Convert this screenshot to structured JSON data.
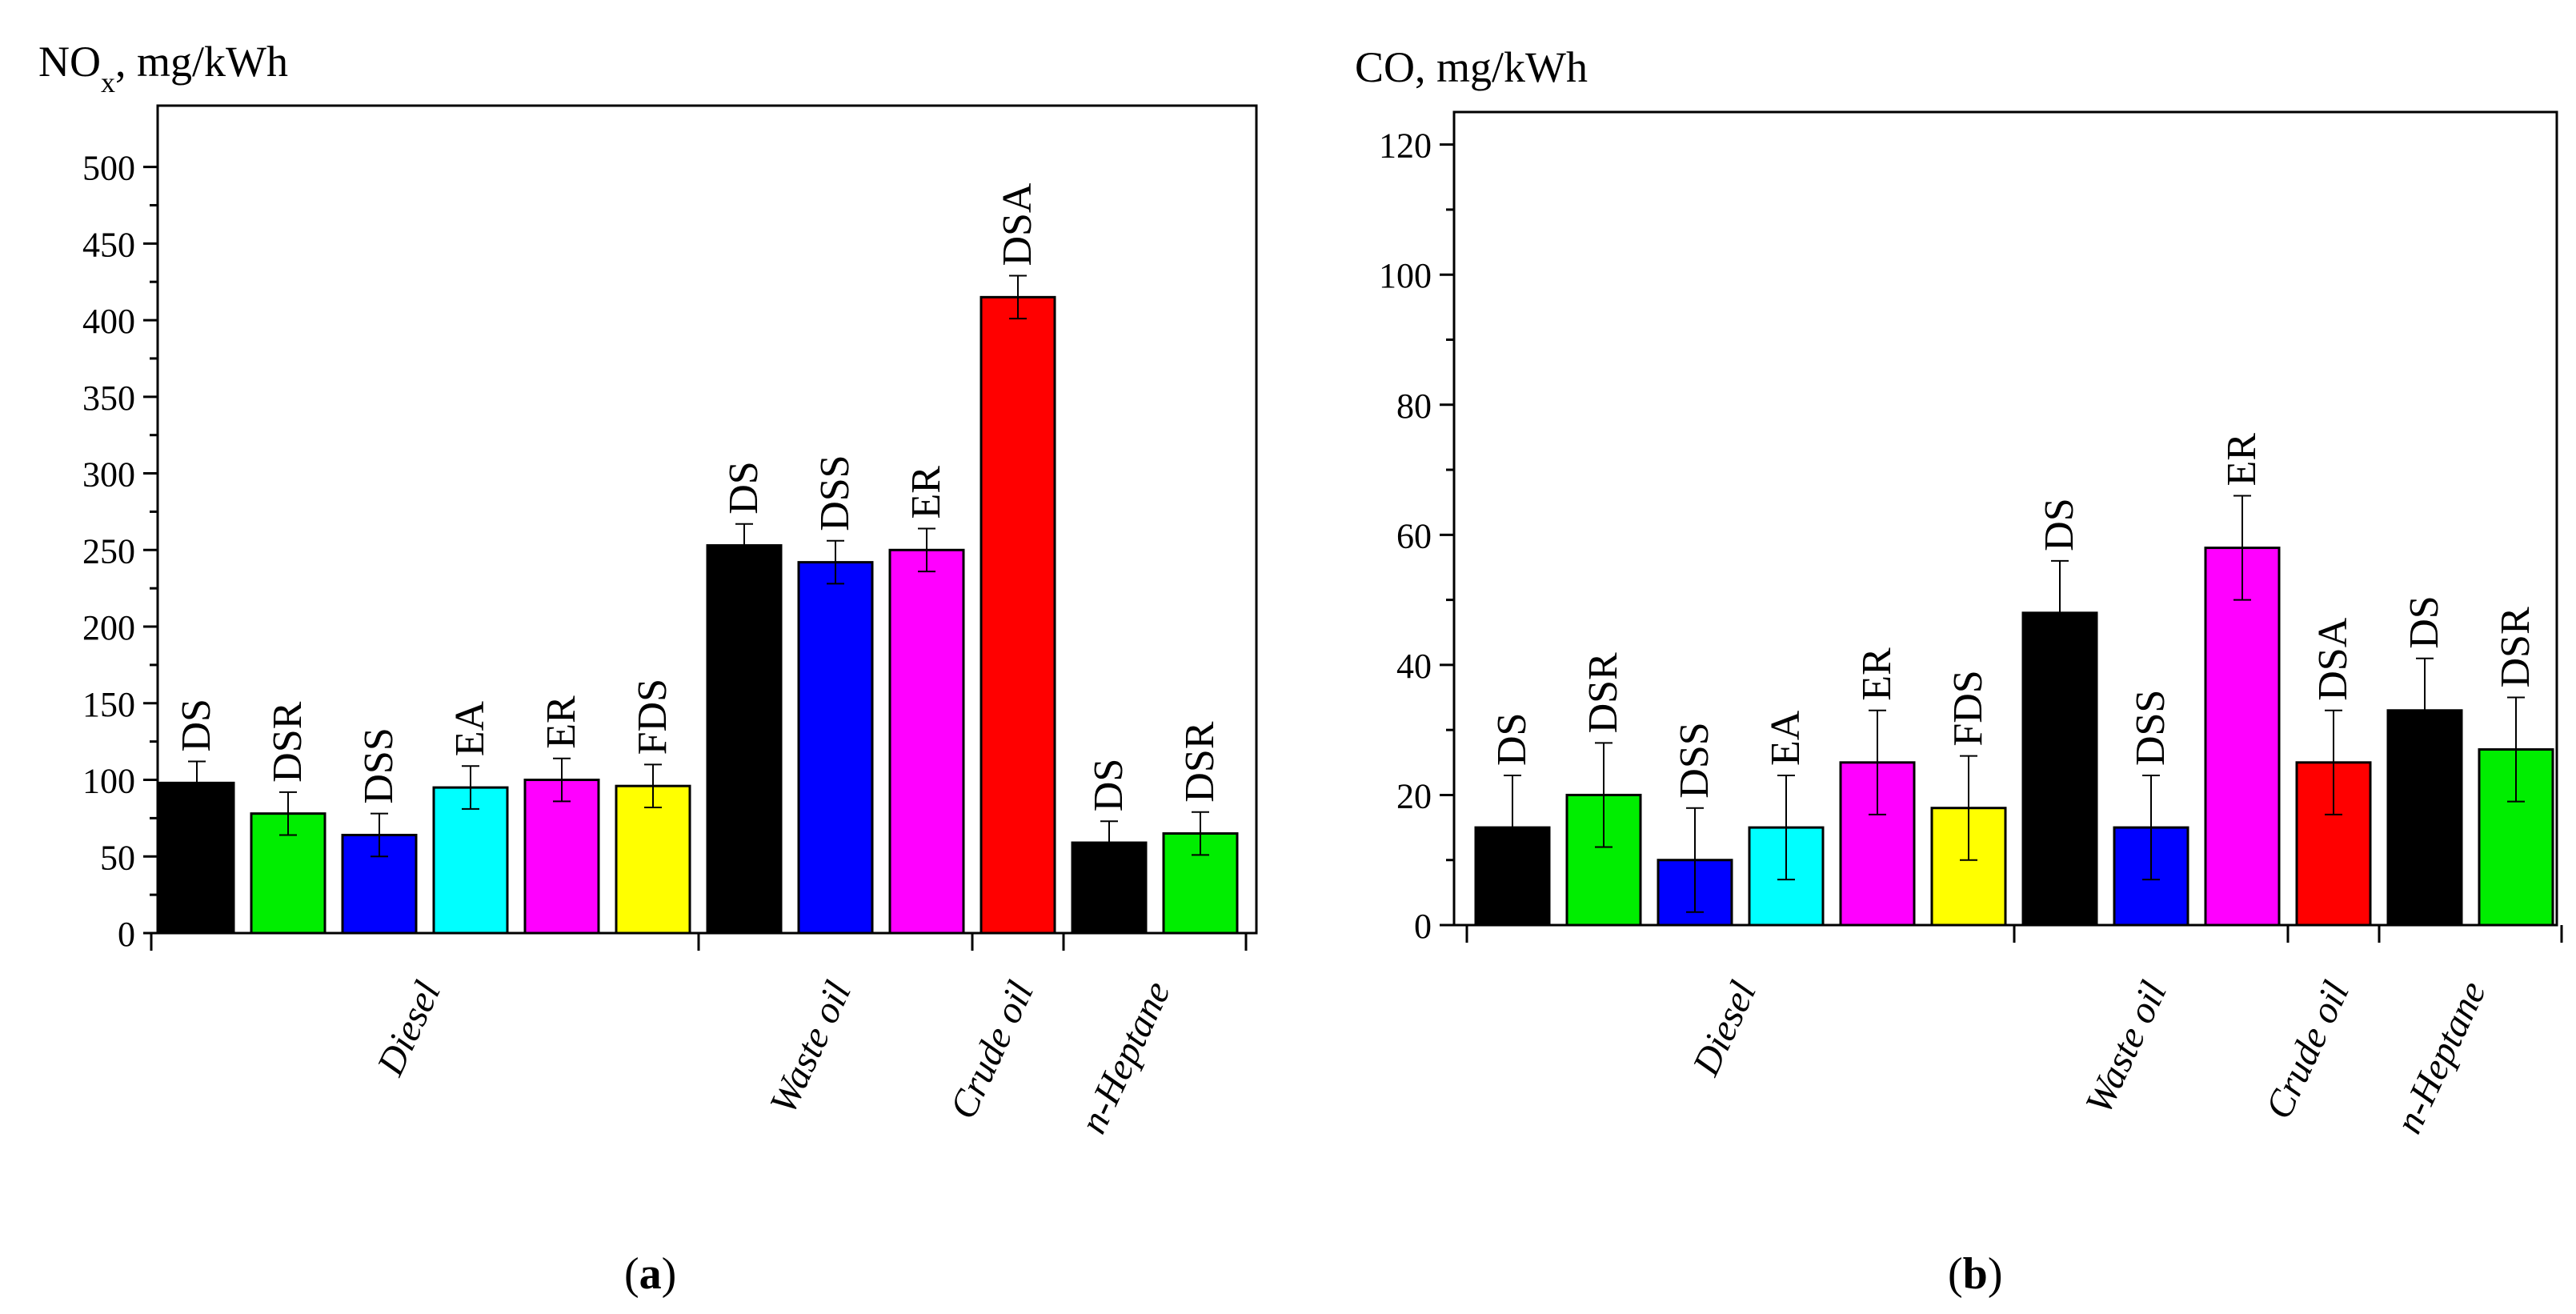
{
  "chart_data": [
    {
      "type": "bar",
      "panel_label": "a",
      "ylabel_main": "NO",
      "ylabel_sub": "x",
      "ylabel_unit": ", mg/kWh",
      "ylim": [
        0,
        540
      ],
      "yticks": [
        0,
        50,
        100,
        150,
        200,
        250,
        300,
        350,
        400,
        450,
        500
      ],
      "yticklabels": [
        "0",
        "50",
        "100",
        "150",
        "200",
        "250",
        "300",
        "350",
        "400",
        "450",
        "500"
      ],
      "grid": false,
      "legend": "none",
      "bars": [
        {
          "group": "Diesel",
          "label": "DS",
          "value": 98,
          "error": 14,
          "color": "#000000"
        },
        {
          "group": "Diesel",
          "label": "DSR",
          "value": 78,
          "error": 14,
          "color": "#00ee00"
        },
        {
          "group": "Diesel",
          "label": "DSS",
          "value": 64,
          "error": 14,
          "color": "#0000ff"
        },
        {
          "group": "Diesel",
          "label": "EA",
          "value": 95,
          "error": 14,
          "color": "#00ffff"
        },
        {
          "group": "Diesel",
          "label": "ER",
          "value": 100,
          "error": 14,
          "color": "#ff00ff"
        },
        {
          "group": "Diesel",
          "label": "FDS",
          "value": 96,
          "error": 14,
          "color": "#ffff00"
        },
        {
          "group": "Waste oil",
          "label": "DS",
          "value": 253,
          "error": 14,
          "color": "#000000"
        },
        {
          "group": "Waste oil",
          "label": "DSS",
          "value": 242,
          "error": 14,
          "color": "#0000ff"
        },
        {
          "group": "Waste oil",
          "label": "ER",
          "value": 250,
          "error": 14,
          "color": "#ff00ff"
        },
        {
          "group": "Crude oil",
          "label": "DSA",
          "value": 415,
          "error": 14,
          "color": "#ff0000"
        },
        {
          "group": "n-Heptane",
          "label": "DS",
          "value": 59,
          "error": 14,
          "color": "#000000"
        },
        {
          "group": "n-Heptane",
          "label": "DSR",
          "value": 65,
          "error": 14,
          "color": "#00ee00"
        }
      ],
      "groups": [
        {
          "name": "Diesel",
          "count": 6
        },
        {
          "name": "Waste oil",
          "count": 3
        },
        {
          "name": "Crude oil",
          "count": 1
        },
        {
          "name": "n-Heptane",
          "count": 2
        }
      ]
    },
    {
      "type": "bar",
      "panel_label": "b",
      "ylabel_main": "CO",
      "ylabel_sub": "",
      "ylabel_unit": ", mg/kWh",
      "ylim": [
        0,
        125
      ],
      "yticks": [
        0,
        20,
        40,
        60,
        80,
        100,
        120
      ],
      "yticklabels": [
        "0",
        "20",
        "40",
        "60",
        "80",
        "100",
        "120"
      ],
      "grid": false,
      "legend": "none",
      "bars": [
        {
          "group": "Diesel",
          "label": "DS",
          "value": 15,
          "error": 8,
          "color": "#000000"
        },
        {
          "group": "Diesel",
          "label": "DSR",
          "value": 20,
          "error": 8,
          "color": "#00ee00"
        },
        {
          "group": "Diesel",
          "label": "DSS",
          "value": 10,
          "error": 8,
          "color": "#0000ff"
        },
        {
          "group": "Diesel",
          "label": "EA",
          "value": 15,
          "error": 8,
          "color": "#00ffff"
        },
        {
          "group": "Diesel",
          "label": "ER",
          "value": 25,
          "error": 8,
          "color": "#ff00ff"
        },
        {
          "group": "Diesel",
          "label": "FDS",
          "value": 18,
          "error": 8,
          "color": "#ffff00"
        },
        {
          "group": "Waste oil",
          "label": "DS",
          "value": 48,
          "error": 8,
          "color": "#000000"
        },
        {
          "group": "Waste oil",
          "label": "DSS",
          "value": 15,
          "error": 8,
          "color": "#0000ff"
        },
        {
          "group": "Waste oil",
          "label": "ER",
          "value": 58,
          "error": 8,
          "color": "#ff00ff"
        },
        {
          "group": "Crude oil",
          "label": "DSA",
          "value": 25,
          "error": 8,
          "color": "#ff0000"
        },
        {
          "group": "n-Heptane",
          "label": "DS",
          "value": 33,
          "error": 8,
          "color": "#000000"
        },
        {
          "group": "n-Heptane",
          "label": "DSR",
          "value": 27,
          "error": 8,
          "color": "#00ee00"
        }
      ],
      "groups": [
        {
          "name": "Diesel",
          "count": 6
        },
        {
          "name": "Waste oil",
          "count": 3
        },
        {
          "name": "Crude oil",
          "count": 1
        },
        {
          "name": "n-Heptane",
          "count": 2
        }
      ]
    }
  ]
}
